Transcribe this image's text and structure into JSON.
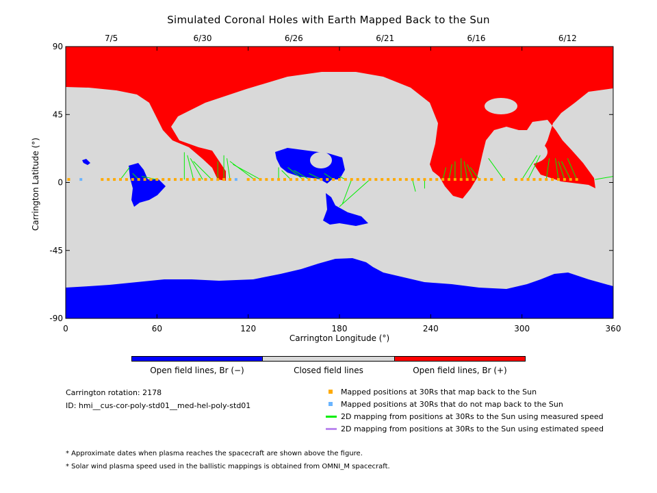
{
  "chart_data": {
    "type": "map",
    "title": "Simulated Coronal Holes with Earth Mapped Back to the Sun",
    "xlabel": "Carrington Longitude (°)",
    "ylabel": "Carrington Latitude (°)",
    "xlim": [
      0,
      360
    ],
    "ylim": [
      -90,
      90
    ],
    "x_ticks": [
      "0",
      "60",
      "120",
      "180",
      "240",
      "300",
      "360"
    ],
    "y_ticks": [
      "90",
      "45",
      "0",
      "-45",
      "-90"
    ],
    "top_dates": [
      {
        "label": "7/5",
        "lon": 30
      },
      {
        "label": "6/30",
        "lon": 90
      },
      {
        "label": "6/26",
        "lon": 150
      },
      {
        "label": "6/21",
        "lon": 210
      },
      {
        "label": "6/16",
        "lon": 270
      },
      {
        "label": "6/12",
        "lon": 330
      }
    ],
    "colorbar": [
      {
        "label": "Open field lines, Br (−)",
        "color": "#0000ff"
      },
      {
        "label": "Closed field lines",
        "color": "#d9d9d9"
      },
      {
        "label": "Open field lines, Br (+)",
        "color": "#ff0000"
      }
    ],
    "regions": {
      "north_positive_hole": {
        "color": "#ff0000",
        "boundary_lat_min": 60
      },
      "south_negative_hole": {
        "color": "#0000ff",
        "boundary_lat_max": -50
      }
    },
    "mapped_lat": 2,
    "mapped_points_lon": [
      2,
      24,
      28,
      32,
      36,
      40,
      44,
      48,
      52,
      56,
      60,
      64,
      68,
      72,
      76,
      80,
      84,
      88,
      92,
      96,
      100,
      104,
      108,
      120,
      124,
      128,
      132,
      136,
      140,
      144,
      148,
      152,
      156,
      160,
      164,
      168,
      172,
      176,
      180,
      184,
      188,
      192,
      196,
      200,
      204,
      208,
      212,
      216,
      220,
      224,
      228,
      232,
      236,
      240,
      244,
      248,
      252,
      256,
      260,
      264,
      268,
      272,
      276,
      280,
      288,
      296,
      300,
      304,
      308,
      312,
      316,
      320,
      324,
      328,
      332,
      336
    ],
    "unmapped_points_lon": [
      10,
      112
    ],
    "mapping_lines_measured": [
      [
        36,
        2,
        42,
        10
      ],
      [
        48,
        2,
        44,
        6
      ],
      [
        60,
        2,
        50,
        4
      ],
      [
        78,
        2,
        78,
        20
      ],
      [
        84,
        2,
        80,
        18
      ],
      [
        90,
        2,
        82,
        16
      ],
      [
        96,
        2,
        84,
        14
      ],
      [
        100,
        2,
        100,
        14
      ],
      [
        104,
        2,
        104,
        18
      ],
      [
        108,
        2,
        106,
        16
      ],
      [
        124,
        2,
        108,
        14
      ],
      [
        128,
        2,
        110,
        12
      ],
      [
        140,
        2,
        140,
        10
      ],
      [
        148,
        2,
        142,
        8
      ],
      [
        156,
        2,
        146,
        10
      ],
      [
        160,
        2,
        150,
        8
      ],
      [
        168,
        2,
        160,
        6
      ],
      [
        176,
        2,
        170,
        6
      ],
      [
        184,
        2,
        180,
        4
      ],
      [
        200,
        2,
        180,
        -16
      ],
      [
        188,
        2,
        182,
        -14
      ],
      [
        228,
        2,
        230,
        -6
      ],
      [
        236,
        2,
        236,
        -4
      ],
      [
        248,
        2,
        250,
        10
      ],
      [
        252,
        2,
        254,
        12
      ],
      [
        256,
        2,
        256,
        14
      ],
      [
        260,
        2,
        260,
        16
      ],
      [
        264,
        2,
        262,
        14
      ],
      [
        268,
        2,
        264,
        12
      ],
      [
        272,
        2,
        266,
        10
      ],
      [
        288,
        2,
        278,
        16
      ],
      [
        300,
        2,
        310,
        18
      ],
      [
        304,
        2,
        312,
        18
      ],
      [
        316,
        2,
        318,
        16
      ],
      [
        324,
        2,
        322,
        16
      ],
      [
        328,
        2,
        324,
        14
      ],
      [
        332,
        2,
        326,
        14
      ],
      [
        336,
        2,
        330,
        16
      ],
      [
        348,
        2,
        360,
        4
      ]
    ],
    "mapping_lines_estimated": [],
    "legend_markers": [
      {
        "kind": "square",
        "color": "#ffaa00",
        "label": "Mapped positions at 30Rs that map back to the Sun"
      },
      {
        "kind": "square",
        "color": "#6ab4ff",
        "label": "Mapped positions at 30Rs that do not map back to the Sun"
      },
      {
        "kind": "line",
        "color": "#00ee00",
        "label": "2D mapping from positions at 30Rs to the Sun using measured speed"
      },
      {
        "kind": "line",
        "color": "#bb88ee",
        "label": "2D mapping from positions at 30Rs to the Sun using estimated speed"
      }
    ],
    "grid": false
  },
  "info": {
    "rotation": "Carrington rotation: 2178",
    "id": "ID: hmi__cus-cor-poly-std01__med-hel-poly-std01"
  },
  "notes": [
    "* Approximate dates when plasma reaches the spacecraft are shown above the figure.",
    "* Solar wind plasma speed used in the ballistic mappings is obtained from OMNI_M spacecraft."
  ]
}
